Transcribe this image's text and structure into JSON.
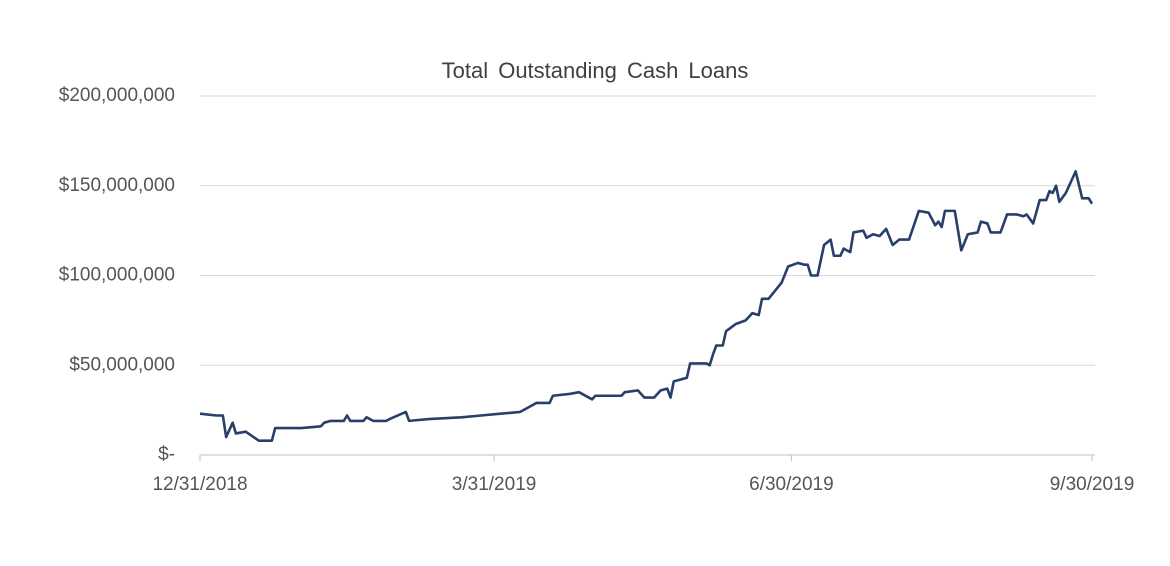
{
  "chart_data": {
    "type": "line",
    "title": "Total Outstanding Cash Loans",
    "x": [
      "12/31/2018",
      "1/5/2019",
      "1/7/2019",
      "1/8/2019",
      "1/10/2019",
      "1/11/2019",
      "1/14/2019",
      "1/18/2019",
      "1/22/2019",
      "1/23/2019",
      "1/31/2019",
      "2/6/2019",
      "2/7/2019",
      "2/9/2019",
      "2/13/2019",
      "2/14/2019",
      "2/15/2019",
      "2/19/2019",
      "2/20/2019",
      "2/22/2019",
      "2/26/2019",
      "2/27/2019",
      "3/4/2019",
      "3/5/2019",
      "3/11/2019",
      "3/21/2019",
      "3/27/2019",
      "4/2/2019",
      "4/8/2019",
      "4/11/2019",
      "4/13/2019",
      "4/17/2019",
      "4/18/2019",
      "4/23/2019",
      "4/26/2019",
      "4/29/2019",
      "4/30/2019",
      "5/1/2019",
      "5/9/2019",
      "5/10/2019",
      "5/14/2019",
      "5/16/2019",
      "5/19/2019",
      "5/21/2019",
      "5/23/2019",
      "5/24/2019",
      "5/25/2019",
      "5/29/2019",
      "5/30/2019",
      "6/4/2019",
      "6/5/2019",
      "6/6/2019",
      "6/7/2019",
      "6/9/2019",
      "6/10/2019",
      "6/13/2019",
      "6/16/2019",
      "6/18/2019",
      "6/20/2019",
      "6/21/2019",
      "6/23/2019",
      "6/27/2019",
      "6/29/2019",
      "7/2/2019",
      "7/4/2019",
      "7/5/2019",
      "7/6/2019",
      "7/8/2019",
      "7/10/2019",
      "7/12/2019",
      "7/13/2019",
      "7/15/2019",
      "7/16/2019",
      "7/18/2019",
      "7/19/2019",
      "7/22/2019",
      "7/23/2019",
      "7/25/2019",
      "7/27/2019",
      "7/29/2019",
      "7/31/2019",
      "8/2/2019",
      "8/5/2019",
      "8/8/2019",
      "8/11/2019",
      "8/13/2019",
      "8/14/2019",
      "8/15/2019",
      "8/16/2019",
      "8/19/2019",
      "8/21/2019",
      "8/23/2019",
      "8/26/2019",
      "8/27/2019",
      "8/29/2019",
      "8/30/2019",
      "9/2/2019",
      "9/4/2019",
      "9/7/2019",
      "9/9/2019",
      "9/10/2019",
      "9/12/2019",
      "9/14/2019",
      "9/16/2019",
      "9/17/2019",
      "9/18/2019",
      "9/19/2019",
      "9/20/2019",
      "9/22/2019",
      "9/23/2019",
      "9/25/2019",
      "9/27/2019",
      "9/29/2019",
      "9/30/2019"
    ],
    "series": [
      {
        "name": "Total Outstanding Cash Loans",
        "color": "#283f6a",
        "values": [
          23000000,
          22000000,
          22000000,
          10000000,
          18000000,
          12000000,
          13000000,
          8000000,
          8000000,
          15000000,
          15000000,
          16000000,
          18000000,
          19000000,
          19000000,
          22000000,
          19000000,
          19000000,
          21000000,
          19000000,
          19000000,
          20000000,
          24000000,
          19000000,
          20000000,
          21000000,
          22000000,
          23000000,
          24000000,
          27000000,
          29000000,
          29000000,
          33000000,
          34000000,
          35000000,
          32000000,
          31000000,
          33000000,
          33000000,
          35000000,
          36000000,
          32000000,
          32000000,
          36000000,
          37000000,
          32000000,
          41000000,
          43000000,
          51000000,
          51000000,
          50000000,
          56000000,
          61000000,
          61000000,
          69000000,
          73000000,
          75000000,
          79000000,
          78000000,
          87000000,
          87000000,
          96000000,
          105000000,
          107000000,
          106000000,
          106000000,
          100000000,
          100000000,
          117000000,
          120000000,
          111000000,
          111000000,
          115000000,
          113000000,
          124000000,
          125000000,
          121000000,
          123000000,
          122000000,
          126000000,
          117000000,
          120000000,
          120000000,
          136000000,
          135000000,
          128000000,
          130000000,
          127000000,
          136000000,
          136000000,
          114000000,
          123000000,
          124000000,
          130000000,
          129000000,
          124000000,
          124000000,
          134000000,
          134000000,
          133000000,
          134000000,
          129000000,
          142000000,
          142000000,
          147000000,
          146000000,
          150000000,
          141000000,
          146000000,
          150000000,
          158000000,
          143000000,
          143000000,
          140000000
        ]
      }
    ],
    "xlim": [
      "12/31/2018",
      "9/30/2019"
    ],
    "xticks": [
      "12/31/2018",
      "3/31/2019",
      "6/30/2019",
      "9/30/2019"
    ],
    "ylim": [
      0,
      200000000
    ],
    "yticks": [
      {
        "value": 0,
        "label": "$-"
      },
      {
        "value": 50000000,
        "label": "$50,000,000"
      },
      {
        "value": 100000000,
        "label": "$100,000,000"
      },
      {
        "value": 150000000,
        "label": "$150,000,000"
      },
      {
        "value": 200000000,
        "label": "$200,000,000"
      }
    ],
    "grid": true
  }
}
